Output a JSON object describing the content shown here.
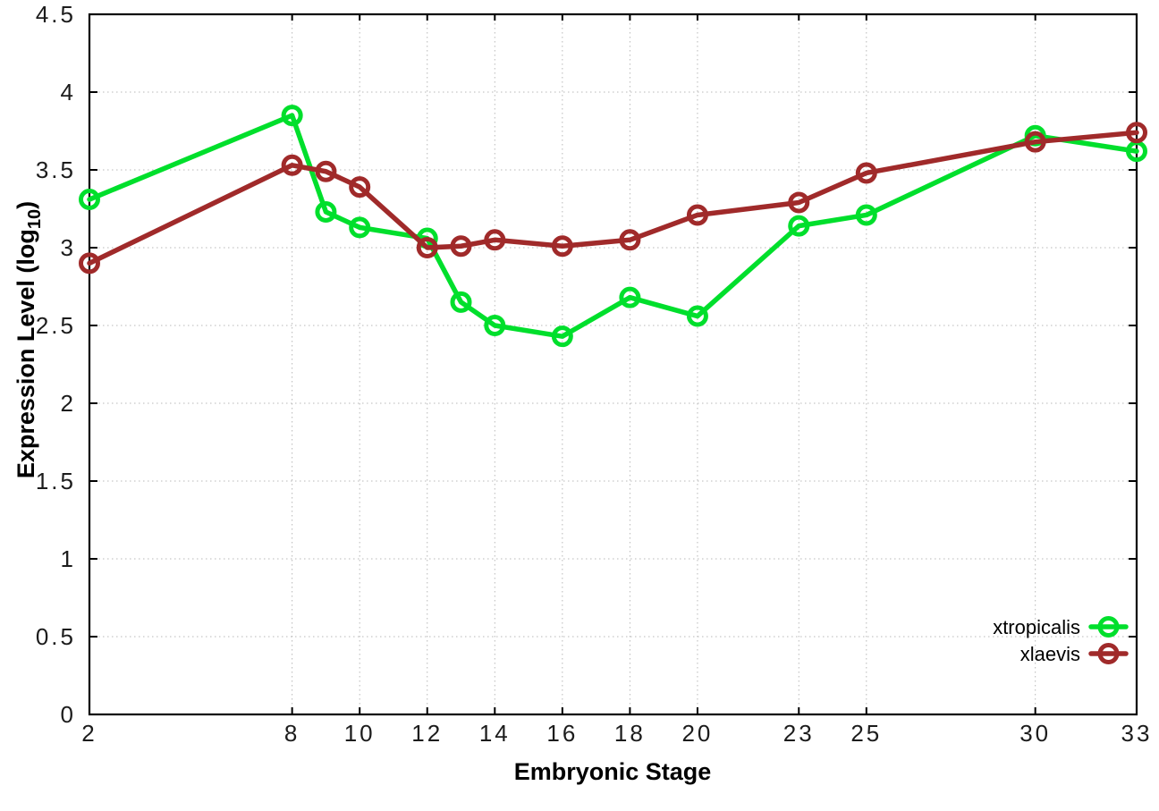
{
  "chart_data": {
    "type": "line",
    "xlabel": "Embryonic Stage",
    "ylabel": "Expression Level (log10)",
    "ylabel_parts": {
      "main": "Expression Level (log",
      "sub": "10",
      "close": ")"
    },
    "xlim": [
      2,
      33
    ],
    "ylim": [
      0,
      4.5
    ],
    "x_ticks": [
      2,
      8,
      10,
      12,
      14,
      16,
      18,
      20,
      23,
      25,
      30,
      33
    ],
    "y_ticks": [
      0,
      0.5,
      1,
      1.5,
      2,
      2.5,
      3,
      3.5,
      4,
      4.5
    ],
    "grid": true,
    "legend_position": "bottom-right",
    "x": [
      2,
      8,
      9,
      10,
      12,
      13,
      14,
      16,
      18,
      20,
      23,
      25,
      30,
      33
    ],
    "series": [
      {
        "name": "xtropicalis",
        "color": "#00df2c",
        "values": [
          3.31,
          3.85,
          3.23,
          3.13,
          3.06,
          2.65,
          2.5,
          2.43,
          2.68,
          2.56,
          3.14,
          3.21,
          3.72,
          3.62
        ]
      },
      {
        "name": "xlaevis",
        "color": "#a02a2a",
        "values": [
          2.9,
          3.53,
          3.49,
          3.39,
          3.0,
          3.01,
          3.05,
          3.01,
          3.05,
          3.21,
          3.29,
          3.48,
          3.68,
          3.74
        ]
      }
    ]
  }
}
